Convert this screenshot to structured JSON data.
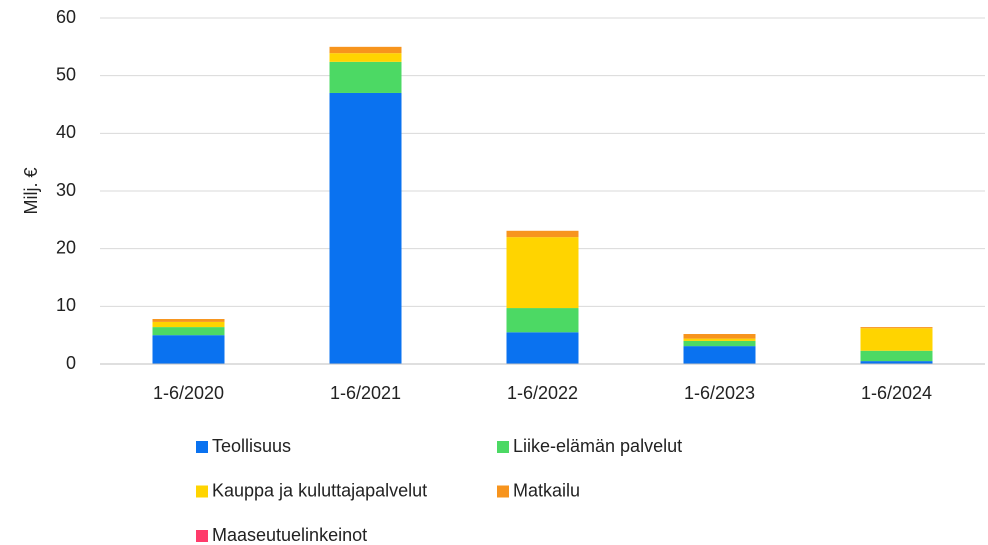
{
  "chart_data": {
    "type": "stacked_bar",
    "y_label": "Milj. €",
    "categories": [
      "1-6/2020",
      "1-6/2021",
      "1-6/2022",
      "1-6/2023",
      "1-6/2024"
    ],
    "series": [
      {
        "name": "Teollisuus",
        "color": "#0a72f0",
        "values": [
          5.0,
          47.0,
          5.5,
          3.1,
          0.5
        ]
      },
      {
        "name": "Liike-elämän palvelut",
        "color": "#4cd964",
        "values": [
          1.4,
          5.4,
          4.2,
          0.9,
          1.8
        ]
      },
      {
        "name": "Kauppa ja kuluttajapalvelut",
        "color": "#ffd400",
        "values": [
          0.9,
          1.5,
          12.3,
          0.4,
          3.9
        ]
      },
      {
        "name": "Matkailu",
        "color": "#f7941d",
        "values": [
          0.5,
          1.1,
          1.1,
          0.8,
          0.2
        ]
      },
      {
        "name": "Maaseutuelinkeinot",
        "color": "#ff3b6b",
        "values": [
          0,
          0,
          0,
          0,
          0
        ]
      }
    ],
    "ylim": [
      0,
      60
    ],
    "yticks": [
      0,
      10,
      20,
      30,
      40,
      50,
      60
    ],
    "grid": true,
    "legend": "bottom"
  }
}
